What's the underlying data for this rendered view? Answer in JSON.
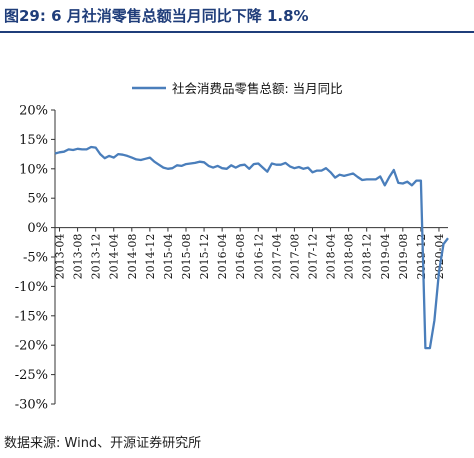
{
  "title": "图29: 6 月社消零售总额当月同比下降 1.8%",
  "source": "数据来源: Wind、开源证券研究所",
  "chart_data": {
    "type": "line",
    "ylim": [
      -30,
      20
    ],
    "yticks": [
      20,
      15,
      10,
      5,
      0,
      -5,
      -10,
      -15,
      -20,
      -25,
      -30
    ],
    "ytick_labels": [
      "20%",
      "15%",
      "10%",
      "5%",
      "0%",
      "-5%",
      "-10%",
      "-15%",
      "-20%",
      "-25%",
      "-30%"
    ],
    "xtick_labels": [
      "2013-04",
      "2013-08",
      "2013-12",
      "2014-04",
      "2014-08",
      "2014-12",
      "2015-04",
      "2015-08",
      "2015-12",
      "2016-04",
      "2016-08",
      "2016-12",
      "2017-04",
      "2017-08",
      "2017-12",
      "2018-04",
      "2018-08",
      "2018-12",
      "2019-04",
      "2019-08",
      "2019-12",
      "2020-04"
    ],
    "legend_position": "top-right",
    "color": "#4a7ebb",
    "series": [
      {
        "name": "社会消费品零售总额: 当月同比",
        "x": [
          "2013-03",
          "2013-04",
          "2013-05",
          "2013-06",
          "2013-07",
          "2013-08",
          "2013-09",
          "2013-10",
          "2013-11",
          "2013-12",
          "2014-01",
          "2014-02",
          "2014-03",
          "2014-04",
          "2014-05",
          "2014-06",
          "2014-07",
          "2014-08",
          "2014-09",
          "2014-10",
          "2014-11",
          "2014-12",
          "2015-01",
          "2015-02",
          "2015-03",
          "2015-04",
          "2015-05",
          "2015-06",
          "2015-07",
          "2015-08",
          "2015-09",
          "2015-10",
          "2015-11",
          "2015-12",
          "2016-01",
          "2016-02",
          "2016-03",
          "2016-04",
          "2016-05",
          "2016-06",
          "2016-07",
          "2016-08",
          "2016-09",
          "2016-10",
          "2016-11",
          "2016-12",
          "2017-01",
          "2017-02",
          "2017-03",
          "2017-04",
          "2017-05",
          "2017-06",
          "2017-07",
          "2017-08",
          "2017-09",
          "2017-10",
          "2017-11",
          "2017-12",
          "2018-01",
          "2018-02",
          "2018-03",
          "2018-04",
          "2018-05",
          "2018-06",
          "2018-07",
          "2018-08",
          "2018-09",
          "2018-10",
          "2018-11",
          "2018-12",
          "2019-01",
          "2019-02",
          "2019-03",
          "2019-04",
          "2019-05",
          "2019-06",
          "2019-07",
          "2019-08",
          "2019-09",
          "2019-10",
          "2019-11",
          "2019-12",
          "2020-01",
          "2020-02",
          "2020-03",
          "2020-04",
          "2020-05",
          "2020-06"
        ],
        "values": [
          12.6,
          12.8,
          12.9,
          13.3,
          13.2,
          13.4,
          13.3,
          13.3,
          13.7,
          13.6,
          12.5,
          11.8,
          12.2,
          11.9,
          12.5,
          12.4,
          12.2,
          11.9,
          11.6,
          11.5,
          11.7,
          11.9,
          11.2,
          10.7,
          10.2,
          10.0,
          10.1,
          10.6,
          10.5,
          10.8,
          10.9,
          11.0,
          11.2,
          11.1,
          10.5,
          10.2,
          10.5,
          10.1,
          10.0,
          10.6,
          10.2,
          10.6,
          10.7,
          10.0,
          10.8,
          10.9,
          10.2,
          9.5,
          10.9,
          10.7,
          10.7,
          11.0,
          10.4,
          10.1,
          10.3,
          10.0,
          10.2,
          9.4,
          9.7,
          9.7,
          10.1,
          9.4,
          8.5,
          9.0,
          8.8,
          9.0,
          9.2,
          8.6,
          8.1,
          8.2,
          8.2,
          8.2,
          8.7,
          7.2,
          8.6,
          9.8,
          7.6,
          7.5,
          7.8,
          7.2,
          8.0,
          8.0,
          -20.5,
          -20.5,
          -15.8,
          -7.5,
          -2.8,
          -1.8
        ]
      }
    ]
  }
}
